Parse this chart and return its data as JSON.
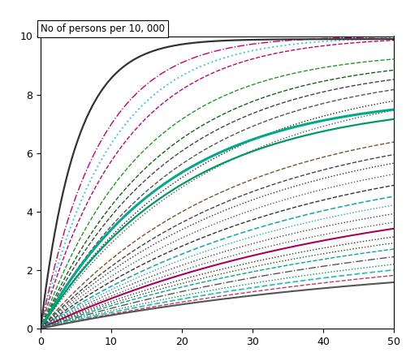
{
  "title": "No of persons per 10, 000",
  "xlim": [
    0,
    50
  ],
  "ylim": [
    0,
    10
  ],
  "xticks": [
    0,
    10,
    20,
    30,
    40,
    50
  ],
  "yticks": [
    0,
    2,
    4,
    6,
    8,
    10
  ],
  "curves": [
    {
      "asymptote": 10.0,
      "rate": 0.12,
      "color": "#cc0066",
      "linestyle": "dashdot",
      "lw": 1.0
    },
    {
      "asymptote": 10.0,
      "rate": 0.085,
      "color": "#cc0066",
      "linestyle": "dashed",
      "lw": 1.0
    },
    {
      "asymptote": 10.0,
      "rate": 0.1,
      "color": "#44cccc",
      "linestyle": "dotted",
      "lw": 1.4
    },
    {
      "asymptote": 9.9,
      "rate": 0.2,
      "color": "#333333",
      "linestyle": "solid",
      "lw": 1.6
    },
    {
      "asymptote": 9.5,
      "rate": 0.07,
      "color": "#229922",
      "linestyle": "dashed",
      "lw": 1.0
    },
    {
      "asymptote": 9.3,
      "rate": 0.06,
      "color": "#116611",
      "linestyle": "dashed",
      "lw": 1.0
    },
    {
      "asymptote": 9.1,
      "rate": 0.055,
      "color": "#444444",
      "linestyle": "dashed",
      "lw": 1.0
    },
    {
      "asymptote": 8.9,
      "rate": 0.05,
      "color": "#555555",
      "linestyle": "dashed",
      "lw": 1.0
    },
    {
      "asymptote": 8.7,
      "rate": 0.045,
      "color": "#222222",
      "linestyle": "dotted",
      "lw": 1.0
    },
    {
      "asymptote": 8.5,
      "rate": 0.042,
      "color": "#555555",
      "linestyle": "dotted",
      "lw": 1.0
    },
    {
      "asymptote": 8.0,
      "rate": 0.055,
      "color": "#00aa88",
      "linestyle": "solid",
      "lw": 2.2
    },
    {
      "asymptote": 7.8,
      "rate": 0.05,
      "color": "#009966",
      "linestyle": "solid",
      "lw": 1.6
    },
    {
      "asymptote": 7.5,
      "rate": 0.038,
      "color": "#775533",
      "linestyle": "dashed",
      "lw": 1.0
    },
    {
      "asymptote": 7.2,
      "rate": 0.035,
      "color": "#444444",
      "linestyle": "dashed",
      "lw": 1.0
    },
    {
      "asymptote": 7.0,
      "rate": 0.033,
      "color": "#333333",
      "linestyle": "dotted",
      "lw": 1.0
    },
    {
      "asymptote": 6.7,
      "rate": 0.031,
      "color": "#555555",
      "linestyle": "dotted",
      "lw": 1.0
    },
    {
      "asymptote": 6.4,
      "rate": 0.029,
      "color": "#333333",
      "linestyle": "dashed",
      "lw": 1.0
    },
    {
      "asymptote": 6.1,
      "rate": 0.027,
      "color": "#22aaaa",
      "linestyle": "dashed",
      "lw": 1.2
    },
    {
      "asymptote": 5.8,
      "rate": 0.026,
      "color": "#22aaaa",
      "linestyle": "dotted",
      "lw": 1.0
    },
    {
      "asymptote": 5.5,
      "rate": 0.025,
      "color": "#444444",
      "linestyle": "dotted",
      "lw": 1.0
    },
    {
      "asymptote": 5.2,
      "rate": 0.024,
      "color": "#555555",
      "linestyle": "dotted",
      "lw": 1.0
    },
    {
      "asymptote": 5.0,
      "rate": 0.023,
      "color": "#aa0055",
      "linestyle": "solid",
      "lw": 1.5
    },
    {
      "asymptote": 4.7,
      "rate": 0.022,
      "color": "#333333",
      "linestyle": "dotted",
      "lw": 1.0
    },
    {
      "asymptote": 4.5,
      "rate": 0.021,
      "color": "#225522",
      "linestyle": "dotted",
      "lw": 1.0
    },
    {
      "asymptote": 4.3,
      "rate": 0.02,
      "color": "#00aa88",
      "linestyle": "dashed",
      "lw": 1.0
    },
    {
      "asymptote": 4.0,
      "rate": 0.019,
      "color": "#555555",
      "linestyle": "dashdot",
      "lw": 1.0
    },
    {
      "asymptote": 3.7,
      "rate": 0.018,
      "color": "#009955",
      "linestyle": "dotted",
      "lw": 1.0
    },
    {
      "asymptote": 3.5,
      "rate": 0.017,
      "color": "#33bbbb",
      "linestyle": "dashed",
      "lw": 1.3
    },
    {
      "asymptote": 3.3,
      "rate": 0.016,
      "color": "#cc3355",
      "linestyle": "dashed",
      "lw": 1.0
    },
    {
      "asymptote": 2.5,
      "rate": 0.02,
      "color": "#555555",
      "linestyle": "solid",
      "lw": 1.5
    }
  ]
}
